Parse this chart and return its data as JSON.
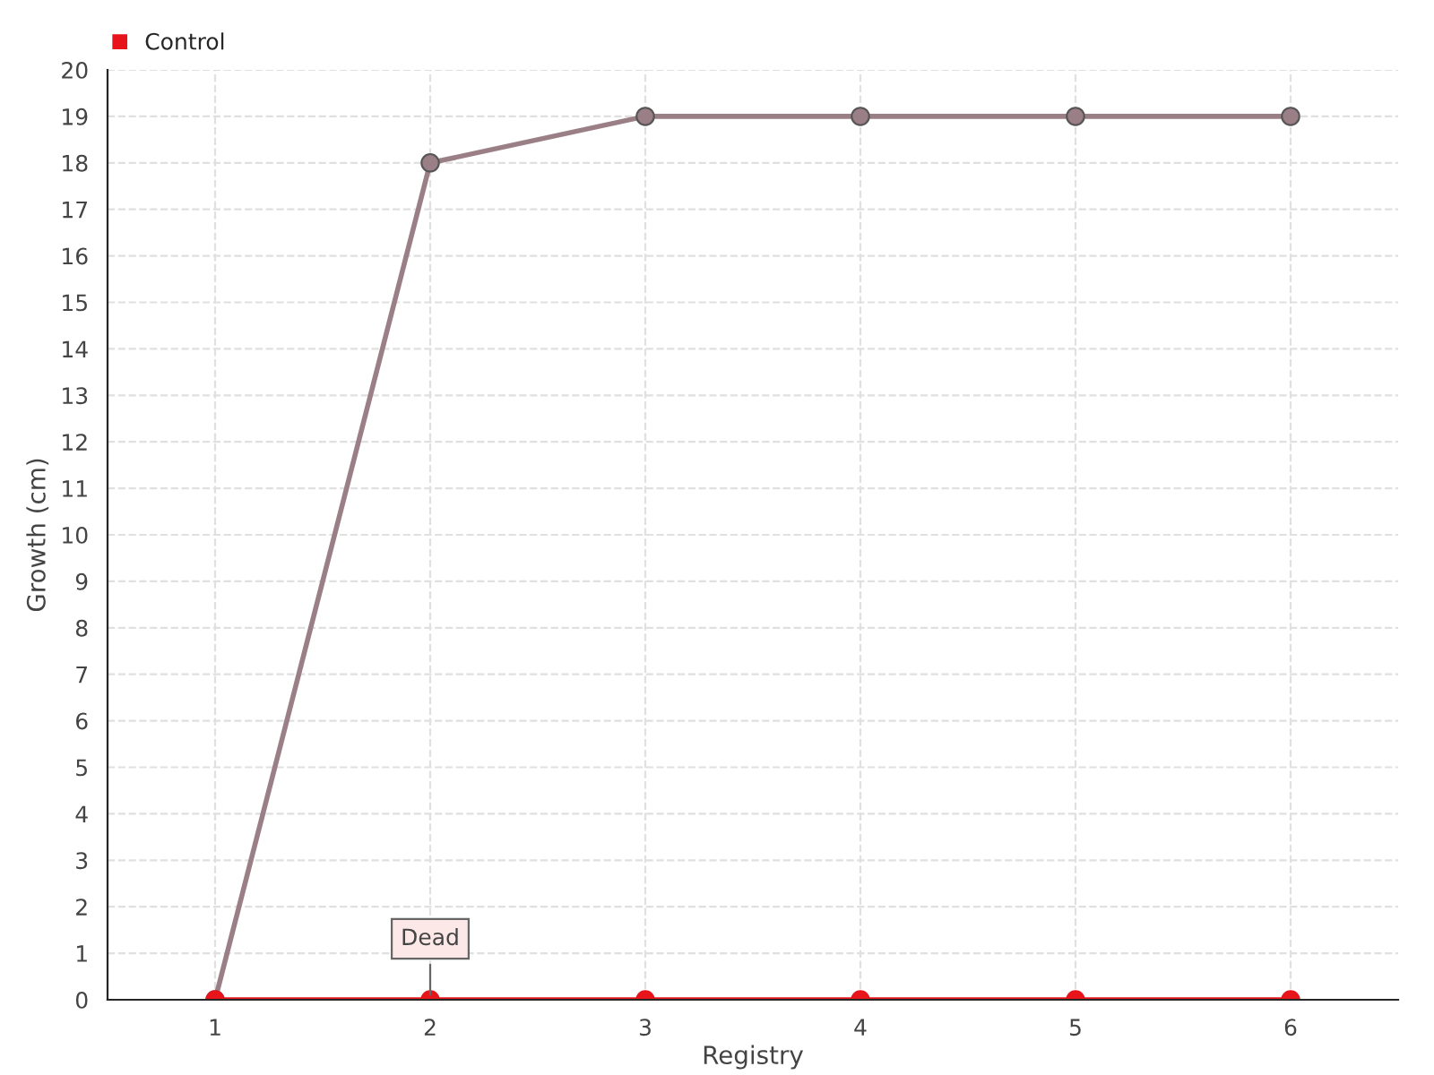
{
  "chart_data": {
    "type": "line",
    "xlabel": "Registry",
    "ylabel": "Growth (cm)",
    "x": [
      1,
      2,
      3,
      4,
      5,
      6
    ],
    "series": [
      {
        "color": "#9a7f86",
        "values": [
          0,
          18,
          19,
          19,
          19,
          19
        ]
      },
      {
        "name": "Control",
        "color": "#e8141c",
        "values": [
          0,
          0,
          0,
          0,
          0,
          0
        ]
      }
    ],
    "xlim": [
      0.5,
      6.5
    ],
    "xticks": [
      1,
      2,
      3,
      4,
      5,
      6
    ],
    "ylim": [
      0,
      20
    ],
    "yticks": [
      0,
      1,
      2,
      3,
      4,
      5,
      6,
      7,
      8,
      9,
      10,
      11,
      12,
      13,
      14,
      15,
      16,
      17,
      18,
      19,
      20
    ],
    "annotations": [
      {
        "text": "Dead",
        "x": 2,
        "y": 0
      }
    ],
    "grid": true,
    "legend": "top left",
    "marker": "circle",
    "line_style": "solid"
  }
}
